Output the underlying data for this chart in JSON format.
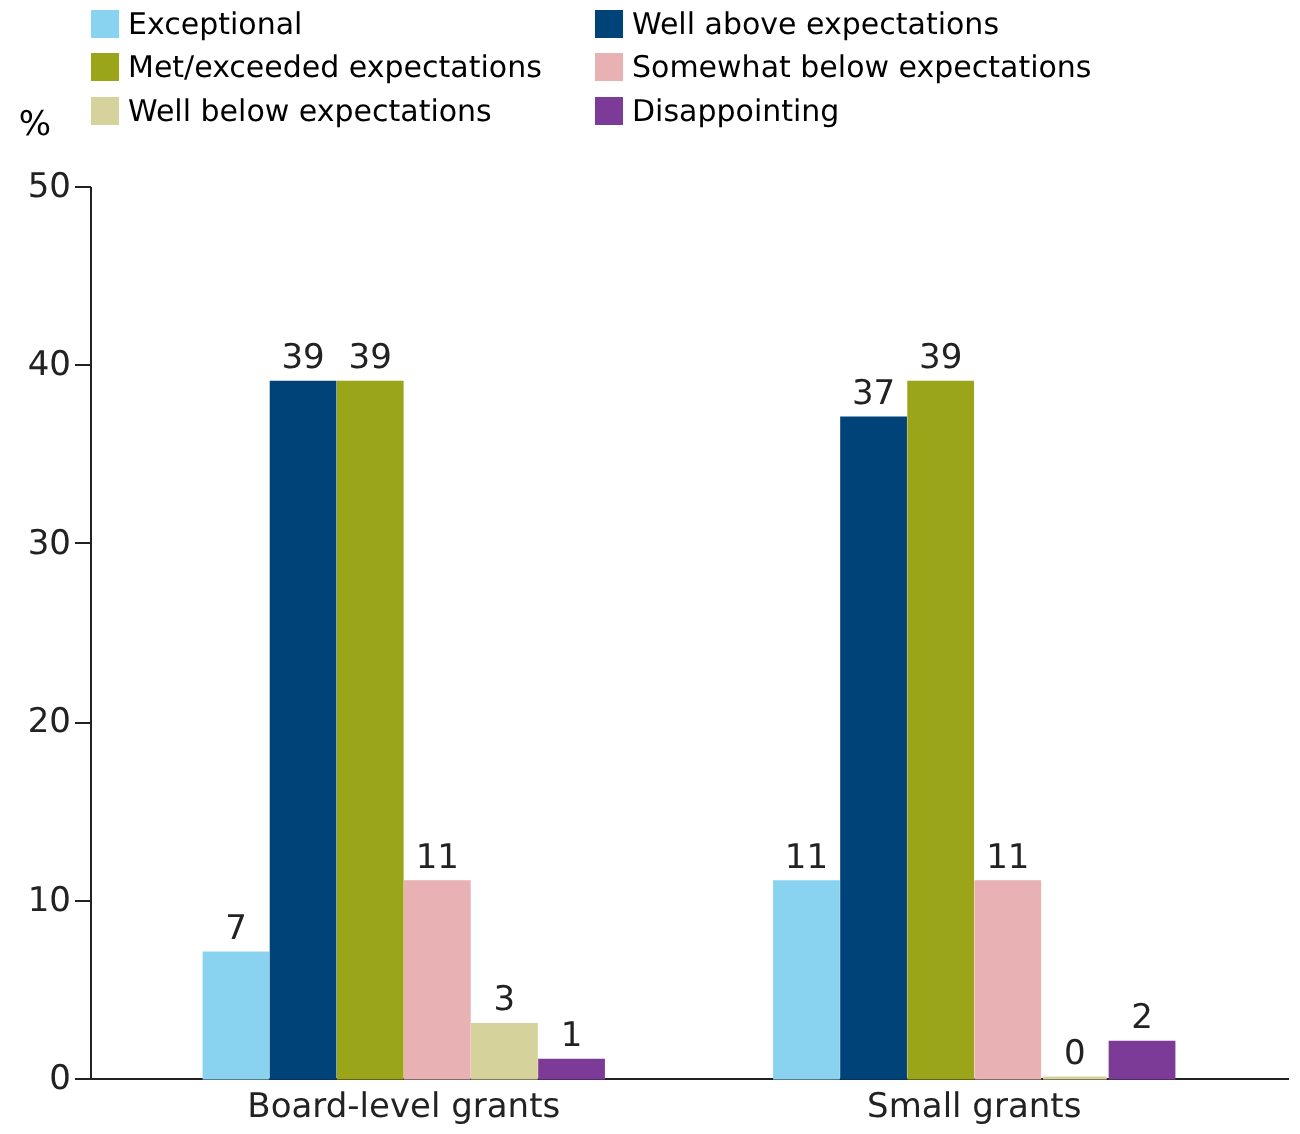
{
  "chart_data": {
    "type": "bar",
    "ylabel": "%",
    "categories": [
      "Board-level grants",
      "Small grants"
    ],
    "series": [
      {
        "name": "Exceptional",
        "color": "#89d3f1",
        "values": [
          7,
          11
        ]
      },
      {
        "name": "Well above expectations",
        "color": "#004379",
        "values": [
          39,
          37
        ]
      },
      {
        "name": "Met/exceeded expectations",
        "color": "#9ba519",
        "values": [
          39,
          39
        ]
      },
      {
        "name": "Somewhat below expectations",
        "color": "#e8b1b4",
        "values": [
          11,
          11
        ]
      },
      {
        "name": "Well below expectations",
        "color": "#d5d39b",
        "values": [
          3,
          0
        ]
      },
      {
        "name": "Disappointing",
        "color": "#7b3b96",
        "values": [
          1,
          2
        ]
      }
    ],
    "ylim": [
      0,
      50
    ],
    "yticks": [
      0,
      10,
      20,
      30,
      40,
      50
    ],
    "grid": false,
    "legend": "top",
    "data_labels": true
  }
}
